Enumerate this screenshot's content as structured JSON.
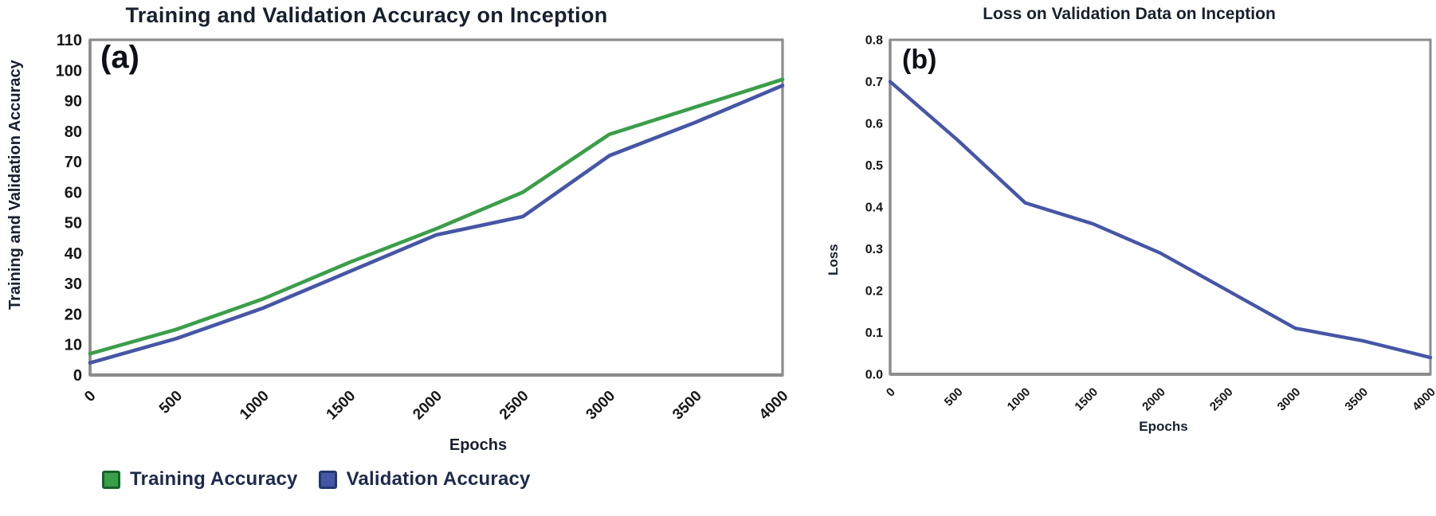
{
  "page": {
    "background": "#ffffff"
  },
  "colors": {
    "axis": "#8c8c8c",
    "tick_text": "#161616",
    "title_text": "#17202e",
    "legend_text": "#1d2a4d",
    "green": "#3b9e4a",
    "blue": "#4656a6",
    "swatch_green_border": "#14632a",
    "swatch_blue_border": "#22386f"
  },
  "chart_data": [
    {
      "type": "line",
      "title": "Training and Validation Accuracy on Inception",
      "annotation": "(a)",
      "xlabel": "Epochs",
      "ylabel": "Training and Validation Accuracy",
      "categories": [
        0,
        500,
        1000,
        1500,
        2000,
        2500,
        3000,
        3500,
        4000
      ],
      "xlim": [
        0,
        4000
      ],
      "ylim": [
        0,
        110
      ],
      "yticks": [
        0,
        10,
        20,
        30,
        40,
        50,
        60,
        70,
        80,
        90,
        100,
        110
      ],
      "ytick_decimals": 0,
      "grid": false,
      "legend_position": "bottom-left",
      "series": [
        {
          "name": "Training Accuracy",
          "color": "#3b9e4a",
          "values": [
            7,
            15,
            25,
            37,
            48,
            60,
            79,
            88,
            97
          ]
        },
        {
          "name": "Validation Accuracy",
          "color": "#4656a6",
          "values": [
            4,
            12,
            22,
            34,
            46,
            52,
            72,
            83,
            95
          ]
        }
      ]
    },
    {
      "type": "line",
      "title": "Loss on Validation Data on Inception",
      "annotation": "(b)",
      "xlabel": "Epochs",
      "ylabel": "Loss",
      "categories": [
        0,
        500,
        1000,
        1500,
        2000,
        2500,
        3000,
        3500,
        4000
      ],
      "xlim": [
        0,
        4000
      ],
      "ylim": [
        0,
        0.8
      ],
      "yticks": [
        0.0,
        0.1,
        0.2,
        0.3,
        0.4,
        0.5,
        0.6,
        0.7,
        0.8
      ],
      "ytick_decimals": 1,
      "grid": false,
      "legend_position": "none",
      "series": [
        {
          "color": "#4656a6",
          "values": [
            0.7,
            0.56,
            0.41,
            0.36,
            0.29,
            0.2,
            0.11,
            0.08,
            0.04
          ]
        }
      ]
    }
  ]
}
